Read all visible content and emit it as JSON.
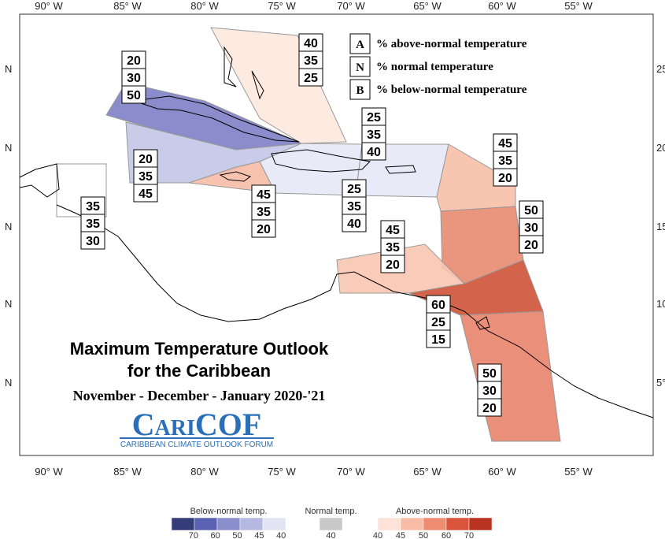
{
  "map": {
    "lon_labels": [
      "90° W",
      "85° W",
      "80° W",
      "75° W",
      "70° W",
      "65° W",
      "60° W",
      "55° W"
    ],
    "lat_labels_left": [
      "N",
      "N",
      "N",
      "N",
      "N"
    ],
    "lat_labels_right": [
      "25",
      "20",
      "15",
      "10",
      "5°"
    ]
  },
  "key": [
    {
      "letter": "A",
      "text": "% above-normal temperature"
    },
    {
      "letter": "N",
      "text": "% normal temperature"
    },
    {
      "letter": "B",
      "text": "% below-normal temperature"
    }
  ],
  "regions": [
    {
      "values": [
        40,
        35,
        25
      ],
      "color": "#fde9df"
    },
    {
      "values": [
        20,
        30,
        50
      ],
      "color": "#7d80c5"
    },
    {
      "values": [
        20,
        35,
        45
      ],
      "color": "#c3c6e7"
    },
    {
      "values": [
        45,
        35,
        20
      ],
      "color": "#f6bca6"
    },
    {
      "values": [
        25,
        35,
        40
      ],
      "color": "#e5e8f6"
    },
    {
      "values": [
        25,
        35,
        40
      ],
      "color": "#e5e8f6"
    },
    {
      "values": [
        35,
        35,
        30
      ],
      "color": "#ffffff"
    },
    {
      "values": [
        45,
        35,
        20
      ],
      "color": "#f7bfa8"
    },
    {
      "values": [
        50,
        30,
        20
      ],
      "color": "#e88a70"
    },
    {
      "values": [
        45,
        35,
        20
      ],
      "color": "#f8c6b2"
    },
    {
      "values": [
        60,
        25,
        15
      ],
      "color": "#cf5237"
    },
    {
      "values": [
        50,
        30,
        20
      ],
      "color": "#e8836b"
    }
  ],
  "title": [
    "Maximum Temperature Outlook",
    "for the Caribbean"
  ],
  "period": "November - December - January 2020-'21",
  "logo": {
    "name": "CariCOF",
    "tagline": "CARIBBEAN CLIMATE OUTLOOK FORUM"
  },
  "legend": {
    "below": {
      "title": "Below-normal temp.",
      "colors": [
        "#353c7a",
        "#5a62b3",
        "#8a8fcc",
        "#b5b8e0",
        "#e2e4f3"
      ],
      "ticks": [
        70,
        60,
        50,
        45,
        40
      ]
    },
    "normal": {
      "title": "Normal temp.",
      "colors": [
        "#c8c8c8"
      ],
      "ticks": [
        40
      ]
    },
    "above": {
      "title": "Above-normal temp.",
      "colors": [
        "#fde2d8",
        "#f8bda6",
        "#ee8d72",
        "#d9543b",
        "#b93320"
      ],
      "ticks": [
        40,
        45,
        50,
        60,
        70
      ]
    }
  }
}
